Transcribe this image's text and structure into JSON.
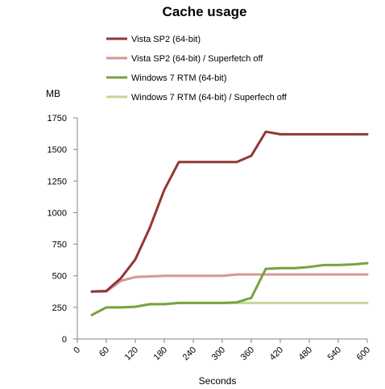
{
  "chart_data": {
    "type": "line",
    "title": "Cache usage",
    "xlabel": "Seconds",
    "ylabel": "MB",
    "xlim": [
      0,
      600
    ],
    "ylim": [
      0,
      1750
    ],
    "x_ticks": [
      "0",
      "60",
      "120",
      "180",
      "240",
      "300",
      "360",
      "420",
      "480",
      "540",
      "600"
    ],
    "y_ticks": [
      "0",
      "250",
      "500",
      "750",
      "1000",
      "1250",
      "1500",
      "1750"
    ],
    "grid": false,
    "legend_position": "top",
    "series": [
      {
        "name": "Vista SP2 (64-bit)",
        "color": "#943634",
        "points": [
          [
            30,
            375
          ],
          [
            60,
            380
          ],
          [
            90,
            480
          ],
          [
            120,
            630
          ],
          [
            150,
            880
          ],
          [
            180,
            1180
          ],
          [
            210,
            1400
          ],
          [
            240,
            1400
          ],
          [
            270,
            1400
          ],
          [
            300,
            1400
          ],
          [
            330,
            1400
          ],
          [
            360,
            1450
          ],
          [
            390,
            1640
          ],
          [
            420,
            1620
          ],
          [
            450,
            1620
          ],
          [
            480,
            1620
          ],
          [
            510,
            1620
          ],
          [
            540,
            1620
          ],
          [
            570,
            1620
          ],
          [
            600,
            1620
          ]
        ]
      },
      {
        "name": "Vista SP2 (64-bit) / Superfetch off",
        "color": "#d99694",
        "points": [
          [
            30,
            375
          ],
          [
            60,
            375
          ],
          [
            90,
            460
          ],
          [
            120,
            490
          ],
          [
            150,
            495
          ],
          [
            180,
            500
          ],
          [
            210,
            500
          ],
          [
            240,
            500
          ],
          [
            270,
            500
          ],
          [
            300,
            500
          ],
          [
            330,
            510
          ],
          [
            360,
            510
          ],
          [
            390,
            510
          ],
          [
            420,
            510
          ],
          [
            450,
            510
          ],
          [
            480,
            510
          ],
          [
            510,
            510
          ],
          [
            540,
            510
          ],
          [
            570,
            510
          ],
          [
            600,
            510
          ]
        ]
      },
      {
        "name": "Windows 7 RTM  (64-bit)",
        "color": "#77a33e",
        "points": [
          [
            30,
            190
          ],
          [
            60,
            250
          ],
          [
            90,
            250
          ],
          [
            120,
            255
          ],
          [
            150,
            275
          ],
          [
            180,
            275
          ],
          [
            210,
            285
          ],
          [
            240,
            285
          ],
          [
            270,
            285
          ],
          [
            300,
            285
          ],
          [
            330,
            290
          ],
          [
            360,
            325
          ],
          [
            390,
            555
          ],
          [
            420,
            560
          ],
          [
            450,
            560
          ],
          [
            480,
            570
          ],
          [
            510,
            585
          ],
          [
            540,
            585
          ],
          [
            570,
            590
          ],
          [
            600,
            600
          ]
        ]
      },
      {
        "name": "Windows 7 RTM  (64-bit) / Superfech off",
        "color": "#c3d69b",
        "points": [
          [
            30,
            190
          ],
          [
            60,
            250
          ],
          [
            90,
            250
          ],
          [
            120,
            255
          ],
          [
            150,
            275
          ],
          [
            180,
            275
          ],
          [
            210,
            285
          ],
          [
            240,
            285
          ],
          [
            270,
            285
          ],
          [
            300,
            285
          ],
          [
            330,
            285
          ],
          [
            360,
            285
          ],
          [
            390,
            285
          ],
          [
            420,
            285
          ],
          [
            450,
            285
          ],
          [
            480,
            285
          ],
          [
            510,
            285
          ],
          [
            540,
            285
          ],
          [
            570,
            285
          ],
          [
            600,
            285
          ]
        ]
      }
    ]
  }
}
